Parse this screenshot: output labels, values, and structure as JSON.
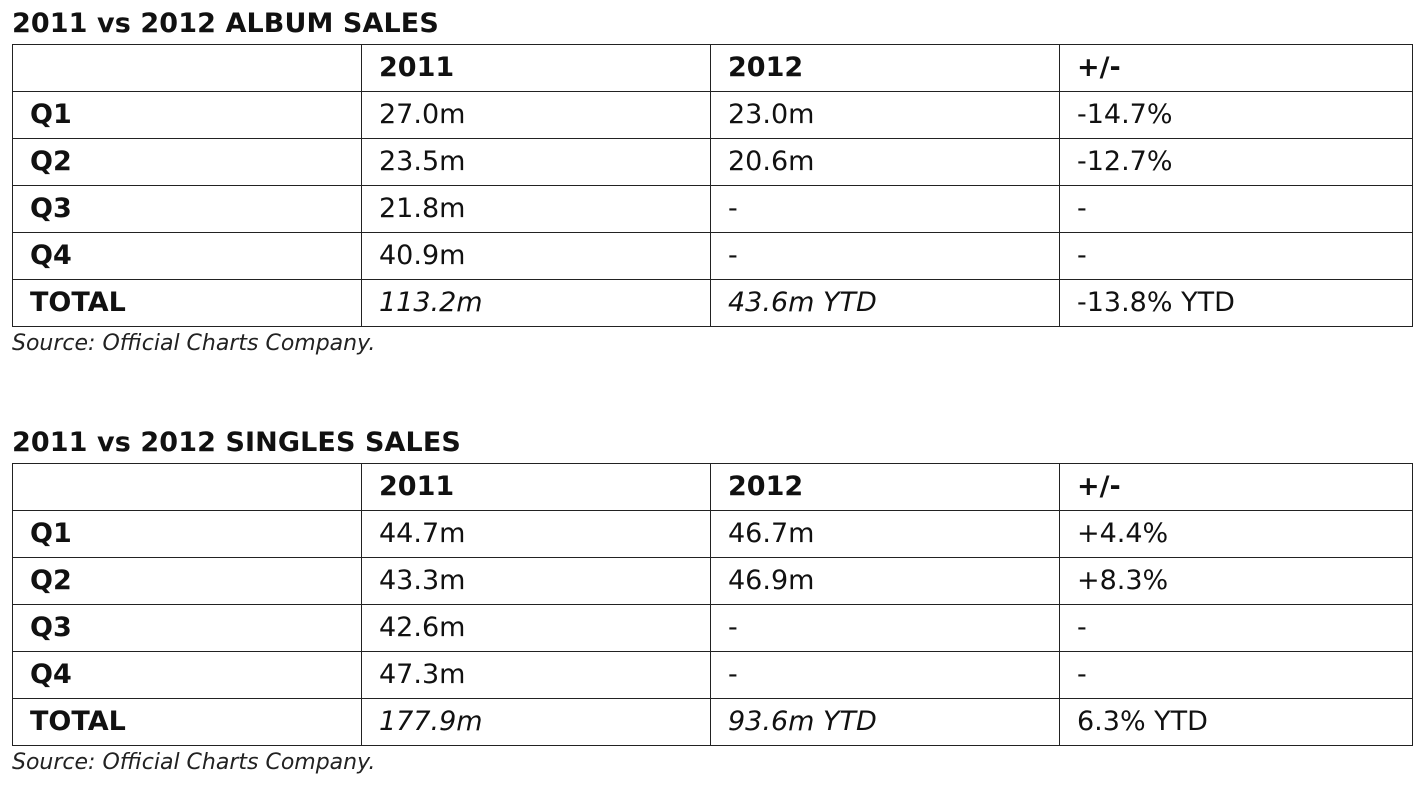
{
  "albums": {
    "title": "2011 vs 2012 ALBUM SALES",
    "header": [
      "",
      "2011",
      "2012",
      "+/-"
    ],
    "rows": [
      {
        "label": "Q1",
        "y2011": "27.0m",
        "y2012": "23.0m",
        "change": "-14.7%"
      },
      {
        "label": "Q2",
        "y2011": "23.5m",
        "y2012": "20.6m",
        "change": "-12.7%"
      },
      {
        "label": "Q3",
        "y2011": "21.8m",
        "y2012": "-",
        "change": "-"
      },
      {
        "label": "Q4",
        "y2011": "40.9m",
        "y2012": "-",
        "change": "-"
      }
    ],
    "total": {
      "label": "TOTAL",
      "y2011": "113.2m",
      "y2012": "43.6m YTD",
      "change": "-13.8% YTD"
    },
    "source": "Source: Official Charts Company."
  },
  "singles": {
    "title": "2011 vs 2012 SINGLES SALES",
    "header": [
      "",
      "2011",
      "2012",
      "+/-"
    ],
    "rows": [
      {
        "label": "Q1",
        "y2011": "44.7m",
        "y2012": "46.7m",
        "change": "+4.4%"
      },
      {
        "label": "Q2",
        "y2011": "43.3m",
        "y2012": "46.9m",
        "change": "+8.3%"
      },
      {
        "label": "Q3",
        "y2011": "42.6m",
        "y2012": "-",
        "change": "-"
      },
      {
        "label": "Q4",
        "y2011": "47.3m",
        "y2012": "-",
        "change": "-"
      }
    ],
    "total": {
      "label": "TOTAL",
      "y2011": "177.9m",
      "y2012": "93.6m YTD",
      "change": "6.3% YTD"
    },
    "source": "Source: Official Charts Company."
  }
}
